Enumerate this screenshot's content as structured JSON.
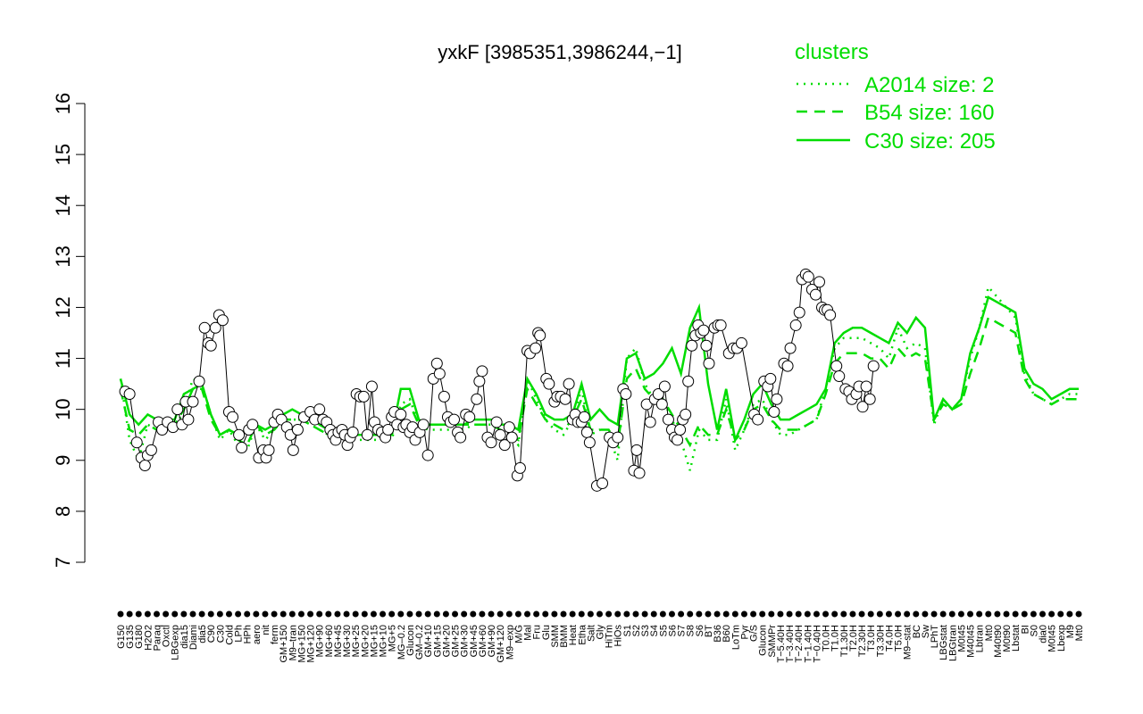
{
  "chart_data": {
    "type": "line",
    "title": "yxkF [3985351,3986244,−1]",
    "xlabel": "",
    "ylabel": "",
    "ylim": [
      7,
      16
    ],
    "yticks": [
      7,
      8,
      9,
      10,
      11,
      12,
      13,
      14,
      15,
      16
    ],
    "x_tick_labels": [
      "G150",
      "G135",
      "G180",
      "H2O2",
      "Paraq",
      "Oxctl",
      "LBGexp",
      "dia15",
      "Diami",
      "dia5",
      "C90",
      "C30",
      "Cold",
      "LPh",
      "HPh",
      "aero",
      "nit",
      "ferm",
      "GM+150",
      "M9–tran",
      "MG+150",
      "MG+120",
      "MG+90",
      "MG+60",
      "MG+45",
      "MG+30",
      "MG+25",
      "MG+20",
      "MG+15",
      "MG+10",
      "MG+5",
      "MG–0.2",
      "Glucon",
      "GM–0.2",
      "GM+10",
      "GM+15",
      "GM+20",
      "GM+25",
      "GM+30",
      "GM+45",
      "GM+60",
      "GM+90",
      "GM+120",
      "M9–exp",
      "M/G",
      "Mal",
      "Fru",
      "Glu",
      "SMM",
      "BMM",
      "Heat",
      "Etha",
      "Salt",
      "Gly",
      "HiTm",
      "HiOs",
      "S1",
      "S2",
      "S3",
      "S4",
      "S5",
      "S6",
      "S7",
      "S8",
      "S6",
      "BT",
      "B36",
      "B60",
      "LoTm",
      "Pyr",
      "G/S",
      "Glucon",
      "SMMPr",
      "T−5.40H",
      "T−3.40H",
      "T−2.40H",
      "T−1.40H",
      "T−0.40H",
      "T0.0H",
      "T1.0H",
      "T1.30H",
      "T2.0H",
      "T2.30H",
      "T3.0H",
      "T3.30H",
      "T4.0H",
      "T5.0H",
      "M9–stat",
      "BC",
      "Sw",
      "LPhT",
      "LBGstat",
      "LBGtran",
      "M0t45",
      "M40t45",
      "Lbtran",
      "Mt0",
      "M40t90",
      "M0t90",
      "Lbstat",
      "BI",
      "S0",
      "dia0",
      "M0t45",
      "Lbexp",
      "M9",
      "Mt0"
    ],
    "series": [
      {
        "name": "A2014 size: 2",
        "style": "dotted",
        "color": "#00dd00",
        "values": [
          10.6,
          9.4,
          9.0,
          9.7,
          9.6,
          9.7,
          9.6,
          10.0,
          10.6,
          10.5,
          9.9,
          9.4,
          9.6,
          9.3,
          9.2,
          9.7,
          9.4,
          9.6,
          9.8,
          9.8,
          9.8,
          9.7,
          9.6,
          9.5,
          9.4,
          9.4,
          9.4,
          9.4,
          9.4,
          9.4,
          9.4,
          10.1,
          10.2,
          9.7,
          9.6,
          9.6,
          9.6,
          9.6,
          9.6,
          9.7,
          9.7,
          9.7,
          9.6,
          9.5,
          9.3,
          10.6,
          10.2,
          9.8,
          9.6,
          9.5,
          9.8,
          10.4,
          9.5,
          9.6,
          9.5,
          9.0,
          11.0,
          11.2,
          10.5,
          10.2,
          10.2,
          9.8,
          9.4,
          8.8,
          9.6,
          9.4,
          9.4,
          10.2,
          9.2,
          9.6,
          10.1,
          10.2,
          9.8,
          9.5,
          9.5,
          9.6,
          9.7,
          9.8,
          10.4,
          11.2,
          11.4,
          11.4,
          11.4,
          11.3,
          11.2,
          11.0,
          11.6,
          11.2,
          11.3,
          11.2,
          9.7,
          10.2,
          10.0,
          10.2,
          11.0,
          11.6,
          12.4,
          12.2,
          12.0,
          11.8,
          10.7,
          10.3,
          10.2,
          10.1,
          10.2,
          10.3,
          10.3
        ]
      },
      {
        "name": "B54 size: 160",
        "style": "dashed",
        "color": "#00dd00",
        "values": [
          10.4,
          9.6,
          9.5,
          9.7,
          9.6,
          9.7,
          9.7,
          10.0,
          10.4,
          10.4,
          9.8,
          9.5,
          9.6,
          9.4,
          9.3,
          9.7,
          9.5,
          9.6,
          9.8,
          9.8,
          9.8,
          9.7,
          9.6,
          9.5,
          9.5,
          9.5,
          9.5,
          9.5,
          9.5,
          9.5,
          9.5,
          10.0,
          10.1,
          9.7,
          9.7,
          9.7,
          9.7,
          9.7,
          9.7,
          9.7,
          9.7,
          9.7,
          9.6,
          9.5,
          9.4,
          10.4,
          10.1,
          9.8,
          9.7,
          9.6,
          9.8,
          10.2,
          9.6,
          9.6,
          9.6,
          9.3,
          10.6,
          10.8,
          10.4,
          10.2,
          10.2,
          9.9,
          9.6,
          9.3,
          9.7,
          9.5,
          9.5,
          10.0,
          9.4,
          9.6,
          10.0,
          10.1,
          9.8,
          9.6,
          9.6,
          9.6,
          9.7,
          9.8,
          10.3,
          10.9,
          11.1,
          11.1,
          11.1,
          11.0,
          11.0,
          10.8,
          11.2,
          11.0,
          11.1,
          11.0,
          9.8,
          10.1,
          10.0,
          10.1,
          10.7,
          11.2,
          11.8,
          11.7,
          11.6,
          11.5,
          10.6,
          10.3,
          10.2,
          10.1,
          10.2,
          10.2,
          10.2
        ]
      },
      {
        "name": "C30 size: 205",
        "style": "solid",
        "color": "#00dd00",
        "values": [
          10.6,
          9.9,
          9.7,
          9.9,
          9.8,
          9.8,
          9.8,
          10.3,
          10.4,
          10.5,
          9.9,
          9.5,
          9.6,
          9.5,
          9.6,
          9.7,
          9.6,
          9.7,
          9.9,
          10.0,
          9.9,
          9.9,
          9.7,
          9.6,
          9.6,
          9.5,
          9.5,
          9.5,
          9.5,
          9.5,
          9.5,
          10.4,
          10.4,
          9.8,
          9.7,
          9.7,
          9.7,
          9.7,
          9.7,
          9.8,
          9.8,
          9.8,
          9.7,
          9.7,
          9.6,
          10.6,
          10.3,
          9.9,
          9.8,
          9.8,
          9.9,
          10.5,
          9.8,
          10.0,
          9.8,
          9.7,
          11.0,
          11.1,
          10.6,
          10.7,
          10.9,
          11.2,
          10.7,
          11.6,
          12.0,
          10.5,
          9.6,
          10.4,
          9.4,
          9.8,
          10.3,
          10.5,
          10.1,
          9.8,
          9.8,
          9.9,
          10.0,
          10.1,
          10.4,
          11.3,
          11.5,
          11.6,
          11.6,
          11.5,
          11.4,
          11.3,
          11.7,
          11.5,
          11.8,
          11.6,
          9.8,
          10.2,
          10.0,
          10.2,
          11.1,
          11.6,
          12.2,
          12.1,
          12.0,
          11.9,
          10.8,
          10.5,
          10.4,
          10.2,
          10.3,
          10.4,
          10.4
        ]
      }
    ],
    "points": [
      {
        "x": 0.5,
        "y": 10.35
      },
      {
        "x": 1.0,
        "y": 10.3
      },
      {
        "x": 1.8,
        "y": 9.35
      },
      {
        "x": 2.3,
        "y": 9.05
      },
      {
        "x": 2.7,
        "y": 8.9
      },
      {
        "x": 3.0,
        "y": 9.1
      },
      {
        "x": 3.4,
        "y": 9.2
      },
      {
        "x": 4.2,
        "y": 9.75
      },
      {
        "x": 4.6,
        "y": 9.6
      },
      {
        "x": 5.2,
        "y": 9.75
      },
      {
        "x": 5.8,
        "y": 9.65
      },
      {
        "x": 6.3,
        "y": 10.0
      },
      {
        "x": 6.8,
        "y": 9.7
      },
      {
        "x": 7.2,
        "y": 10.15
      },
      {
        "x": 7.5,
        "y": 9.8
      },
      {
        "x": 8.0,
        "y": 10.15
      },
      {
        "x": 8.7,
        "y": 10.55
      },
      {
        "x": 9.3,
        "y": 11.6
      },
      {
        "x": 9.7,
        "y": 11.3
      },
      {
        "x": 10.0,
        "y": 11.25
      },
      {
        "x": 10.5,
        "y": 11.6
      },
      {
        "x": 10.9,
        "y": 11.85
      },
      {
        "x": 11.3,
        "y": 11.75
      },
      {
        "x": 12.0,
        "y": 9.95
      },
      {
        "x": 12.4,
        "y": 9.85
      },
      {
        "x": 13.1,
        "y": 9.5
      },
      {
        "x": 13.4,
        "y": 9.25
      },
      {
        "x": 14.2,
        "y": 9.6
      },
      {
        "x": 14.6,
        "y": 9.7
      },
      {
        "x": 15.3,
        "y": 9.05
      },
      {
        "x": 15.8,
        "y": 9.2
      },
      {
        "x": 16.1,
        "y": 9.05
      },
      {
        "x": 16.4,
        "y": 9.2
      },
      {
        "x": 17.0,
        "y": 9.75
      },
      {
        "x": 17.4,
        "y": 9.9
      },
      {
        "x": 17.8,
        "y": 9.8
      },
      {
        "x": 18.4,
        "y": 9.65
      },
      {
        "x": 18.8,
        "y": 9.5
      },
      {
        "x": 19.1,
        "y": 9.2
      },
      {
        "x": 19.6,
        "y": 9.6
      },
      {
        "x": 20.3,
        "y": 9.85
      },
      {
        "x": 21.0,
        "y": 9.95
      },
      {
        "x": 21.5,
        "y": 9.8
      },
      {
        "x": 22.0,
        "y": 10.0
      },
      {
        "x": 22.4,
        "y": 9.8
      },
      {
        "x": 22.8,
        "y": 9.75
      },
      {
        "x": 23.2,
        "y": 9.6
      },
      {
        "x": 23.5,
        "y": 9.5
      },
      {
        "x": 23.8,
        "y": 9.4
      },
      {
        "x": 24.1,
        "y": 9.55
      },
      {
        "x": 24.5,
        "y": 9.6
      },
      {
        "x": 24.8,
        "y": 9.5
      },
      {
        "x": 25.1,
        "y": 9.3
      },
      {
        "x": 25.4,
        "y": 9.45
      },
      {
        "x": 25.7,
        "y": 9.55
      },
      {
        "x": 26.1,
        "y": 10.3
      },
      {
        "x": 26.5,
        "y": 10.25
      },
      {
        "x": 26.9,
        "y": 10.25
      },
      {
        "x": 27.3,
        "y": 9.5
      },
      {
        "x": 27.8,
        "y": 10.45
      },
      {
        "x": 28.1,
        "y": 9.75
      },
      {
        "x": 28.5,
        "y": 9.6
      },
      {
        "x": 28.9,
        "y": 9.55
      },
      {
        "x": 29.3,
        "y": 9.45
      },
      {
        "x": 29.6,
        "y": 9.6
      },
      {
        "x": 30.0,
        "y": 9.85
      },
      {
        "x": 30.3,
        "y": 9.95
      },
      {
        "x": 30.6,
        "y": 9.7
      },
      {
        "x": 31.0,
        "y": 9.9
      },
      {
        "x": 31.3,
        "y": 9.65
      },
      {
        "x": 31.6,
        "y": 9.7
      },
      {
        "x": 32.0,
        "y": 9.55
      },
      {
        "x": 32.3,
        "y": 9.65
      },
      {
        "x": 32.6,
        "y": 9.4
      },
      {
        "x": 33.1,
        "y": 9.55
      },
      {
        "x": 33.5,
        "y": 9.7
      },
      {
        "x": 34.0,
        "y": 9.1
      },
      {
        "x": 34.6,
        "y": 10.6
      },
      {
        "x": 35.0,
        "y": 10.9
      },
      {
        "x": 35.3,
        "y": 10.7
      },
      {
        "x": 35.8,
        "y": 10.25
      },
      {
        "x": 36.2,
        "y": 9.85
      },
      {
        "x": 36.5,
        "y": 9.75
      },
      {
        "x": 36.9,
        "y": 9.8
      },
      {
        "x": 37.3,
        "y": 9.55
      },
      {
        "x": 37.6,
        "y": 9.45
      },
      {
        "x": 38.2,
        "y": 9.9
      },
      {
        "x": 38.6,
        "y": 9.85
      },
      {
        "x": 39.4,
        "y": 10.2
      },
      {
        "x": 39.7,
        "y": 10.55
      },
      {
        "x": 40.0,
        "y": 10.75
      },
      {
        "x": 40.6,
        "y": 9.45
      },
      {
        "x": 41.0,
        "y": 9.35
      },
      {
        "x": 41.6,
        "y": 9.75
      },
      {
        "x": 42.0,
        "y": 9.5
      },
      {
        "x": 42.5,
        "y": 9.3
      },
      {
        "x": 43.0,
        "y": 9.65
      },
      {
        "x": 43.3,
        "y": 9.45
      },
      {
        "x": 43.9,
        "y": 8.7
      },
      {
        "x": 44.2,
        "y": 8.85
      },
      {
        "x": 45.0,
        "y": 11.15
      },
      {
        "x": 45.3,
        "y": 11.1
      },
      {
        "x": 45.9,
        "y": 11.2
      },
      {
        "x": 46.2,
        "y": 11.5
      },
      {
        "x": 46.4,
        "y": 11.45
      },
      {
        "x": 47.1,
        "y": 10.6
      },
      {
        "x": 47.4,
        "y": 10.5
      },
      {
        "x": 48.0,
        "y": 10.15
      },
      {
        "x": 48.3,
        "y": 10.25
      },
      {
        "x": 48.7,
        "y": 10.25
      },
      {
        "x": 49.2,
        "y": 10.2
      },
      {
        "x": 49.6,
        "y": 10.5
      },
      {
        "x": 50.0,
        "y": 9.8
      },
      {
        "x": 50.3,
        "y": 9.9
      },
      {
        "x": 50.6,
        "y": 9.75
      },
      {
        "x": 51.0,
        "y": 9.75
      },
      {
        "x": 51.3,
        "y": 9.85
      },
      {
        "x": 51.6,
        "y": 9.55
      },
      {
        "x": 51.9,
        "y": 9.35
      },
      {
        "x": 52.7,
        "y": 8.5
      },
      {
        "x": 53.3,
        "y": 8.55
      },
      {
        "x": 54.1,
        "y": 9.45
      },
      {
        "x": 54.5,
        "y": 9.35
      },
      {
        "x": 55.0,
        "y": 9.45
      },
      {
        "x": 55.6,
        "y": 10.4
      },
      {
        "x": 55.9,
        "y": 10.3
      },
      {
        "x": 56.8,
        "y": 8.8
      },
      {
        "x": 57.1,
        "y": 9.2
      },
      {
        "x": 57.4,
        "y": 8.75
      },
      {
        "x": 58.2,
        "y": 10.1
      },
      {
        "x": 58.6,
        "y": 9.75
      },
      {
        "x": 59.1,
        "y": 10.2
      },
      {
        "x": 59.5,
        "y": 10.3
      },
      {
        "x": 59.9,
        "y": 10.1
      },
      {
        "x": 60.2,
        "y": 10.45
      },
      {
        "x": 60.6,
        "y": 9.8
      },
      {
        "x": 61.0,
        "y": 9.6
      },
      {
        "x": 61.3,
        "y": 9.45
      },
      {
        "x": 61.6,
        "y": 9.4
      },
      {
        "x": 61.9,
        "y": 9.6
      },
      {
        "x": 62.2,
        "y": 9.8
      },
      {
        "x": 62.5,
        "y": 9.9
      },
      {
        "x": 62.8,
        "y": 10.55
      },
      {
        "x": 63.2,
        "y": 11.25
      },
      {
        "x": 63.6,
        "y": 11.45
      },
      {
        "x": 63.9,
        "y": 11.65
      },
      {
        "x": 64.2,
        "y": 11.5
      },
      {
        "x": 64.5,
        "y": 11.55
      },
      {
        "x": 64.8,
        "y": 11.25
      },
      {
        "x": 65.1,
        "y": 10.9
      },
      {
        "x": 65.7,
        "y": 11.6
      },
      {
        "x": 66.1,
        "y": 11.65
      },
      {
        "x": 66.4,
        "y": 11.65
      },
      {
        "x": 67.3,
        "y": 11.1
      },
      {
        "x": 67.8,
        "y": 11.2
      },
      {
        "x": 68.2,
        "y": 11.2
      },
      {
        "x": 68.7,
        "y": 11.3
      },
      {
        "x": 70.1,
        "y": 9.9
      },
      {
        "x": 70.5,
        "y": 9.8
      },
      {
        "x": 71.2,
        "y": 10.55
      },
      {
        "x": 71.6,
        "y": 10.45
      },
      {
        "x": 71.9,
        "y": 10.6
      },
      {
        "x": 72.3,
        "y": 9.95
      },
      {
        "x": 72.6,
        "y": 10.2
      },
      {
        "x": 73.4,
        "y": 10.9
      },
      {
        "x": 73.8,
        "y": 10.85
      },
      {
        "x": 74.1,
        "y": 11.2
      },
      {
        "x": 74.7,
        "y": 11.65
      },
      {
        "x": 75.1,
        "y": 11.9
      },
      {
        "x": 75.4,
        "y": 12.55
      },
      {
        "x": 75.8,
        "y": 12.65
      },
      {
        "x": 76.1,
        "y": 12.6
      },
      {
        "x": 76.5,
        "y": 12.35
      },
      {
        "x": 76.9,
        "y": 12.25
      },
      {
        "x": 77.3,
        "y": 12.5
      },
      {
        "x": 77.6,
        "y": 12.0
      },
      {
        "x": 77.9,
        "y": 11.95
      },
      {
        "x": 78.2,
        "y": 11.95
      },
      {
        "x": 78.5,
        "y": 11.85
      },
      {
        "x": 79.2,
        "y": 10.85
      },
      {
        "x": 79.5,
        "y": 10.65
      },
      {
        "x": 80.2,
        "y": 10.4
      },
      {
        "x": 80.6,
        "y": 10.35
      },
      {
        "x": 80.9,
        "y": 10.2
      },
      {
        "x": 81.4,
        "y": 10.3
      },
      {
        "x": 81.7,
        "y": 10.45
      },
      {
        "x": 82.1,
        "y": 10.05
      },
      {
        "x": 82.5,
        "y": 10.45
      },
      {
        "x": 82.9,
        "y": 10.2
      },
      {
        "x": 83.3,
        "y": 10.85
      }
    ],
    "legend": {
      "title": "clusters",
      "position": "top-right",
      "entries": [
        {
          "label": "A2014 size: 2",
          "style": "dotted"
        },
        {
          "label": "B54 size: 160",
          "style": "dashed"
        },
        {
          "label": "C30 size: 205",
          "style": "solid"
        }
      ]
    },
    "grid": false,
    "colors": {
      "series": "#00dd00",
      "legend_text": "#00dd00",
      "axis": "#000000",
      "point_fill": "#ffffff",
      "point_stroke": "#000000"
    }
  }
}
